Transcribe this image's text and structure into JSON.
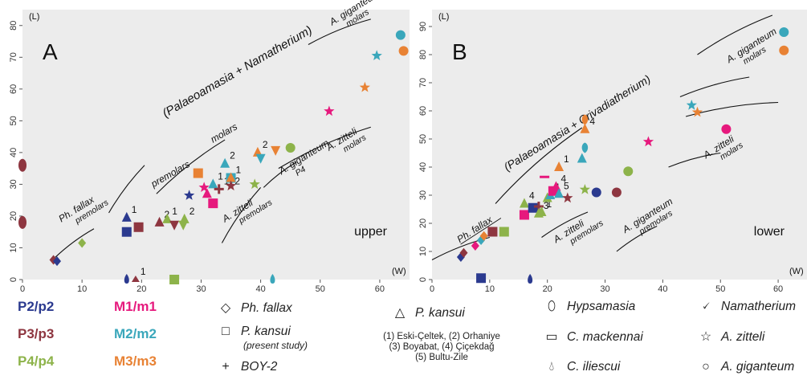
{
  "colors": {
    "P2": "#2b3a8f",
    "P3": "#8e3640",
    "P4": "#8db34a",
    "M1": "#e6197d",
    "M2": "#3aa7bb",
    "M3": "#e88234",
    "panel_bg": "#ececec"
  },
  "chart_data": [
    {
      "type": "scatter",
      "panel_letter": "A",
      "jaw_label": "upper",
      "ylabel": "(L)",
      "xlabel": "(W)",
      "xlim": [
        0,
        65
      ],
      "ylim": [
        0,
        85
      ],
      "xticks": [
        "0",
        "10",
        "20",
        "30",
        "40",
        "50",
        "60"
      ],
      "yticks": [
        "0",
        "10",
        "20",
        "30",
        "40",
        "50",
        "60",
        "70",
        "80"
      ],
      "points": [
        {
          "x": 0,
          "y": 36,
          "shape": "ellipse",
          "c": "P3"
        },
        {
          "x": 0,
          "y": 18,
          "shape": "ellipse",
          "c": "P3"
        },
        {
          "x": 10,
          "y": 11.5,
          "shape": "diamond",
          "c": "P4"
        },
        {
          "x": 5.2,
          "y": 6.2,
          "shape": "diamond",
          "c": "P3"
        },
        {
          "x": 5.8,
          "y": 5.8,
          "shape": "diamond",
          "c": "P2"
        },
        {
          "x": 17.5,
          "y": 19.5,
          "shape": "triangle",
          "c": "P2",
          "label": "1"
        },
        {
          "x": 17.5,
          "y": 15,
          "shape": "square",
          "c": "P2"
        },
        {
          "x": 19.5,
          "y": 16.5,
          "shape": "square",
          "c": "P3"
        },
        {
          "x": 23,
          "y": 18,
          "shape": "triangle",
          "c": "P3",
          "label": "2"
        },
        {
          "x": 24.3,
          "y": 19,
          "shape": "triangle",
          "c": "P4",
          "label": "1"
        },
        {
          "x": 25.5,
          "y": 17,
          "shape": "vshape",
          "c": "P3"
        },
        {
          "x": 27.2,
          "y": 19,
          "shape": "triangle",
          "c": "P4",
          "label": "2"
        },
        {
          "x": 27,
          "y": 17,
          "shape": "vshape",
          "c": "P4"
        },
        {
          "x": 28,
          "y": 26.5,
          "shape": "star",
          "c": "P2"
        },
        {
          "x": 29.5,
          "y": 33.5,
          "shape": "square",
          "c": "M3"
        },
        {
          "x": 31,
          "y": 27,
          "shape": "triangle",
          "c": "M1"
        },
        {
          "x": 30.5,
          "y": 29,
          "shape": "star",
          "c": "M1"
        },
        {
          "x": 32,
          "y": 24,
          "shape": "square",
          "c": "M1"
        },
        {
          "x": 32,
          "y": 30,
          "shape": "triangle",
          "c": "M2",
          "label": "1"
        },
        {
          "x": 33,
          "y": 28.5,
          "shape": "cross",
          "c": "P3",
          "label": "1+2"
        },
        {
          "x": 34,
          "y": 36.5,
          "shape": "triangle",
          "c": "M2",
          "label": "2"
        },
        {
          "x": 35,
          "y": 32,
          "shape": "square",
          "c": "M2"
        },
        {
          "x": 35,
          "y": 32,
          "shape": "triangle",
          "c": "M3",
          "label": "1"
        },
        {
          "x": 35,
          "y": 29.5,
          "shape": "star",
          "c": "P3"
        },
        {
          "x": 39,
          "y": 30,
          "shape": "star",
          "c": "P4"
        },
        {
          "x": 39.5,
          "y": 40,
          "shape": "triangle",
          "c": "M3",
          "label": "2"
        },
        {
          "x": 40,
          "y": 38,
          "shape": "vshape",
          "c": "M2"
        },
        {
          "x": 42.5,
          "y": 40.5,
          "shape": "vshape",
          "c": "M3"
        },
        {
          "x": 45,
          "y": 41.5,
          "shape": "circle",
          "c": "P4"
        },
        {
          "x": 51.5,
          "y": 53,
          "shape": "star",
          "c": "M1"
        },
        {
          "x": 57.5,
          "y": 60.5,
          "shape": "star",
          "c": "M3"
        },
        {
          "x": 59.5,
          "y": 70.5,
          "shape": "star",
          "c": "M2"
        },
        {
          "x": 63.5,
          "y": 77,
          "shape": "circle",
          "c": "M2"
        },
        {
          "x": 64,
          "y": 72,
          "shape": "circle",
          "c": "M3"
        },
        {
          "x": 19,
          "y": 0,
          "shape": "tri_small",
          "c": "P3",
          "label": "1"
        },
        {
          "x": 17.5,
          "y": 0,
          "shape": "drop",
          "c": "P2"
        },
        {
          "x": 25.5,
          "y": 0,
          "shape": "square",
          "c": "P4"
        },
        {
          "x": 42,
          "y": 0,
          "shape": "drop",
          "c": "M2"
        }
      ],
      "annotations": [
        {
          "text": "Ph. fallax",
          "sub": "premolars",
          "x": 6.5,
          "y": 18,
          "rot": -32
        },
        {
          "text": "(Palaeoamasia + Namatherium)",
          "x": 24,
          "y": 51,
          "rot": -30,
          "size": 15
        },
        {
          "text": "premolars",
          "x": 22,
          "y": 29,
          "rot": -30
        },
        {
          "text": "molars",
          "x": 32,
          "y": 43,
          "rot": -30
        },
        {
          "text": "A. zitteli",
          "sub": "premolars",
          "x": 34,
          "y": 18,
          "rot": -32
        },
        {
          "text": "A. giganteum",
          "sub": "P4",
          "x": 43.5,
          "y": 33,
          "rot": -32
        },
        {
          "text": "A. zitteli",
          "sub": "molars",
          "x": 51.5,
          "y": 40.5,
          "rot": -32
        },
        {
          "text": "A. giganteum",
          "sub": "molars",
          "x": 52,
          "y": 80,
          "rot": -32
        }
      ],
      "lines": [
        [
          [
            5.5,
            7
          ],
          [
            12,
            16
          ]
        ],
        [
          [
            14.5,
            21
          ],
          [
            20.5,
            36
          ]
        ],
        [
          [
            22.5,
            27
          ],
          [
            34,
            44
          ]
        ],
        [
          [
            33.5,
            11.5
          ],
          [
            40,
            29
          ]
        ],
        [
          [
            40.5,
            29
          ],
          [
            46,
            37
          ]
        ],
        [
          [
            43,
            35
          ],
          [
            58.5,
            48
          ]
        ],
        [
          [
            48,
            74
          ],
          [
            58.5,
            82
          ]
        ]
      ]
    },
    {
      "type": "scatter",
      "panel_letter": "B",
      "jaw_label": "lower",
      "ylabel": "(L)",
      "xlabel": "(W)",
      "xlim": [
        0,
        65
      ],
      "ylim": [
        0,
        96
      ],
      "xticks": [
        "0",
        "10",
        "20",
        "30",
        "40",
        "50",
        "60"
      ],
      "yticks": [
        "0",
        "10",
        "20",
        "30",
        "40",
        "50",
        "60",
        "70",
        "80",
        "90"
      ],
      "points": [
        {
          "x": 5,
          "y": 8,
          "shape": "diamond",
          "c": "P2"
        },
        {
          "x": 5.5,
          "y": 9.5,
          "shape": "diamond",
          "c": "P3"
        },
        {
          "x": 7.5,
          "y": 12,
          "shape": "diamond",
          "c": "M1"
        },
        {
          "x": 8.5,
          "y": 14,
          "shape": "diamond",
          "c": "M2"
        },
        {
          "x": 9,
          "y": 15.5,
          "shape": "diamond",
          "c": "M3"
        },
        {
          "x": 10.5,
          "y": 17,
          "shape": "square",
          "c": "P3"
        },
        {
          "x": 12.5,
          "y": 17,
          "shape": "square",
          "c": "P4"
        },
        {
          "x": 16,
          "y": 23,
          "shape": "square",
          "c": "M1",
          "label": "3"
        },
        {
          "x": 16,
          "y": 27,
          "shape": "triangle",
          "c": "P4",
          "label": "4"
        },
        {
          "x": 17.5,
          "y": 25.5,
          "shape": "square",
          "c": "P2"
        },
        {
          "x": 18.5,
          "y": 26,
          "shape": "cross",
          "c": "P3"
        },
        {
          "x": 18.5,
          "y": 23.5,
          "shape": "triangle",
          "c": "P4",
          "label": "3"
        },
        {
          "x": 19,
          "y": 24,
          "shape": "triangle",
          "c": "P4",
          "label": "1"
        },
        {
          "x": 19.5,
          "y": 36.5,
          "shape": "dash",
          "c": "M1"
        },
        {
          "x": 20,
          "y": 29,
          "shape": "triangle",
          "c": "P4"
        },
        {
          "x": 20.5,
          "y": 30,
          "shape": "triangle",
          "c": "M2",
          "label": "1"
        },
        {
          "x": 21,
          "y": 31.5,
          "shape": "square",
          "c": "M1"
        },
        {
          "x": 21.5,
          "y": 33,
          "shape": "triangle",
          "c": "M1",
          "label": "4"
        },
        {
          "x": 22,
          "y": 30.5,
          "shape": "triangle",
          "c": "M2",
          "label": "5"
        },
        {
          "x": 23.5,
          "y": 29,
          "shape": "star",
          "c": "P3"
        },
        {
          "x": 22,
          "y": 40,
          "shape": "triangle",
          "c": "M3",
          "label": "1"
        },
        {
          "x": 26.5,
          "y": 32,
          "shape": "star",
          "c": "P4"
        },
        {
          "x": 26,
          "y": 43,
          "shape": "triangle",
          "c": "M2"
        },
        {
          "x": 26.5,
          "y": 47,
          "shape": "drop_up",
          "c": "M2"
        },
        {
          "x": 26.5,
          "y": 53.5,
          "shape": "triangle",
          "c": "M3",
          "label": "4"
        },
        {
          "x": 26.5,
          "y": 57,
          "shape": "drop_up",
          "c": "M3"
        },
        {
          "x": 28.5,
          "y": 31,
          "shape": "circle",
          "c": "P2"
        },
        {
          "x": 32,
          "y": 31,
          "shape": "circle",
          "c": "P3"
        },
        {
          "x": 34,
          "y": 38.5,
          "shape": "circle",
          "c": "P4"
        },
        {
          "x": 37.5,
          "y": 49,
          "shape": "star",
          "c": "M1"
        },
        {
          "x": 45,
          "y": 62,
          "shape": "star",
          "c": "M2"
        },
        {
          "x": 46,
          "y": 59.5,
          "shape": "star",
          "c": "M3"
        },
        {
          "x": 51,
          "y": 53.5,
          "shape": "circle",
          "c": "M1"
        },
        {
          "x": 61,
          "y": 88,
          "shape": "circle",
          "c": "M2"
        },
        {
          "x": 61,
          "y": 81.5,
          "shape": "circle",
          "c": "M3"
        },
        {
          "x": 8.5,
          "y": 0.5,
          "shape": "square",
          "c": "P2"
        },
        {
          "x": 17,
          "y": 0,
          "shape": "drop",
          "c": "P2"
        }
      ],
      "annotations": [
        {
          "text": "Ph. fallax",
          "x": 4.8,
          "y": 13,
          "rot": -33,
          "underline": true
        },
        {
          "text": "(Palaeoamasia + Crivadiatherium)",
          "x": 13,
          "y": 38.5,
          "rot": -32,
          "size": 14
        },
        {
          "text": "A. zitteli",
          "sub": "premolars",
          "x": 21.5,
          "y": 13,
          "rot": -32
        },
        {
          "text": "A. giganteum",
          "sub": "premolars",
          "x": 33.5,
          "y": 16.5,
          "rot": -32
        },
        {
          "text": "A. zitteli",
          "sub": "molars",
          "x": 47.5,
          "y": 43,
          "rot": -32
        },
        {
          "text": "A. giganteum",
          "sub": "molars",
          "x": 51.5,
          "y": 77,
          "rot": -32
        }
      ],
      "lines": [
        [
          [
            0,
            7
          ],
          [
            10,
            15
          ]
        ],
        [
          [
            11,
            27
          ],
          [
            26,
            54
          ]
        ],
        [
          [
            19,
            15
          ],
          [
            27,
            24
          ]
        ],
        [
          [
            32,
            10
          ],
          [
            39,
            19
          ]
        ],
        [
          [
            41,
            40
          ],
          [
            50,
            45
          ]
        ],
        [
          [
            43,
            65
          ],
          [
            55,
            72
          ]
        ],
        [
          [
            44,
            58
          ],
          [
            60,
            63
          ]
        ],
        [
          [
            46,
            80
          ],
          [
            59,
            94
          ]
        ]
      ]
    }
  ],
  "legend": {
    "colors": [
      {
        "label": "P2/p2",
        "c": "P2"
      },
      {
        "label": "P3/p3",
        "c": "P3"
      },
      {
        "label": "P4/p4",
        "c": "P4"
      },
      {
        "label": "M1/m1",
        "c": "M1"
      },
      {
        "label": "M2/m2",
        "c": "M2"
      },
      {
        "label": "M3/m3",
        "c": "M3"
      }
    ],
    "species": {
      "ph_fallax": "Ph. fallax",
      "p_kansui_sq": "P. kansui",
      "p_kansui_sq_sub": "(present study)",
      "boy2": "BOY-2",
      "p_kansui_tri": "P. kansui",
      "hypsamasia": "Hypsamasia",
      "c_mackennai": "C. mackennai",
      "c_iliescui": "C. iliescui",
      "namatherium": "Namatherium",
      "a_zitteli": "A. zitteli",
      "a_giganteum": "A. giganteum"
    },
    "localities": [
      "(1) Eski-Çeltek, (2) Orhaniye",
      "(3) Boyabat, (4) Çiçekdağ",
      "(5) Bultu-Zile"
    ]
  }
}
